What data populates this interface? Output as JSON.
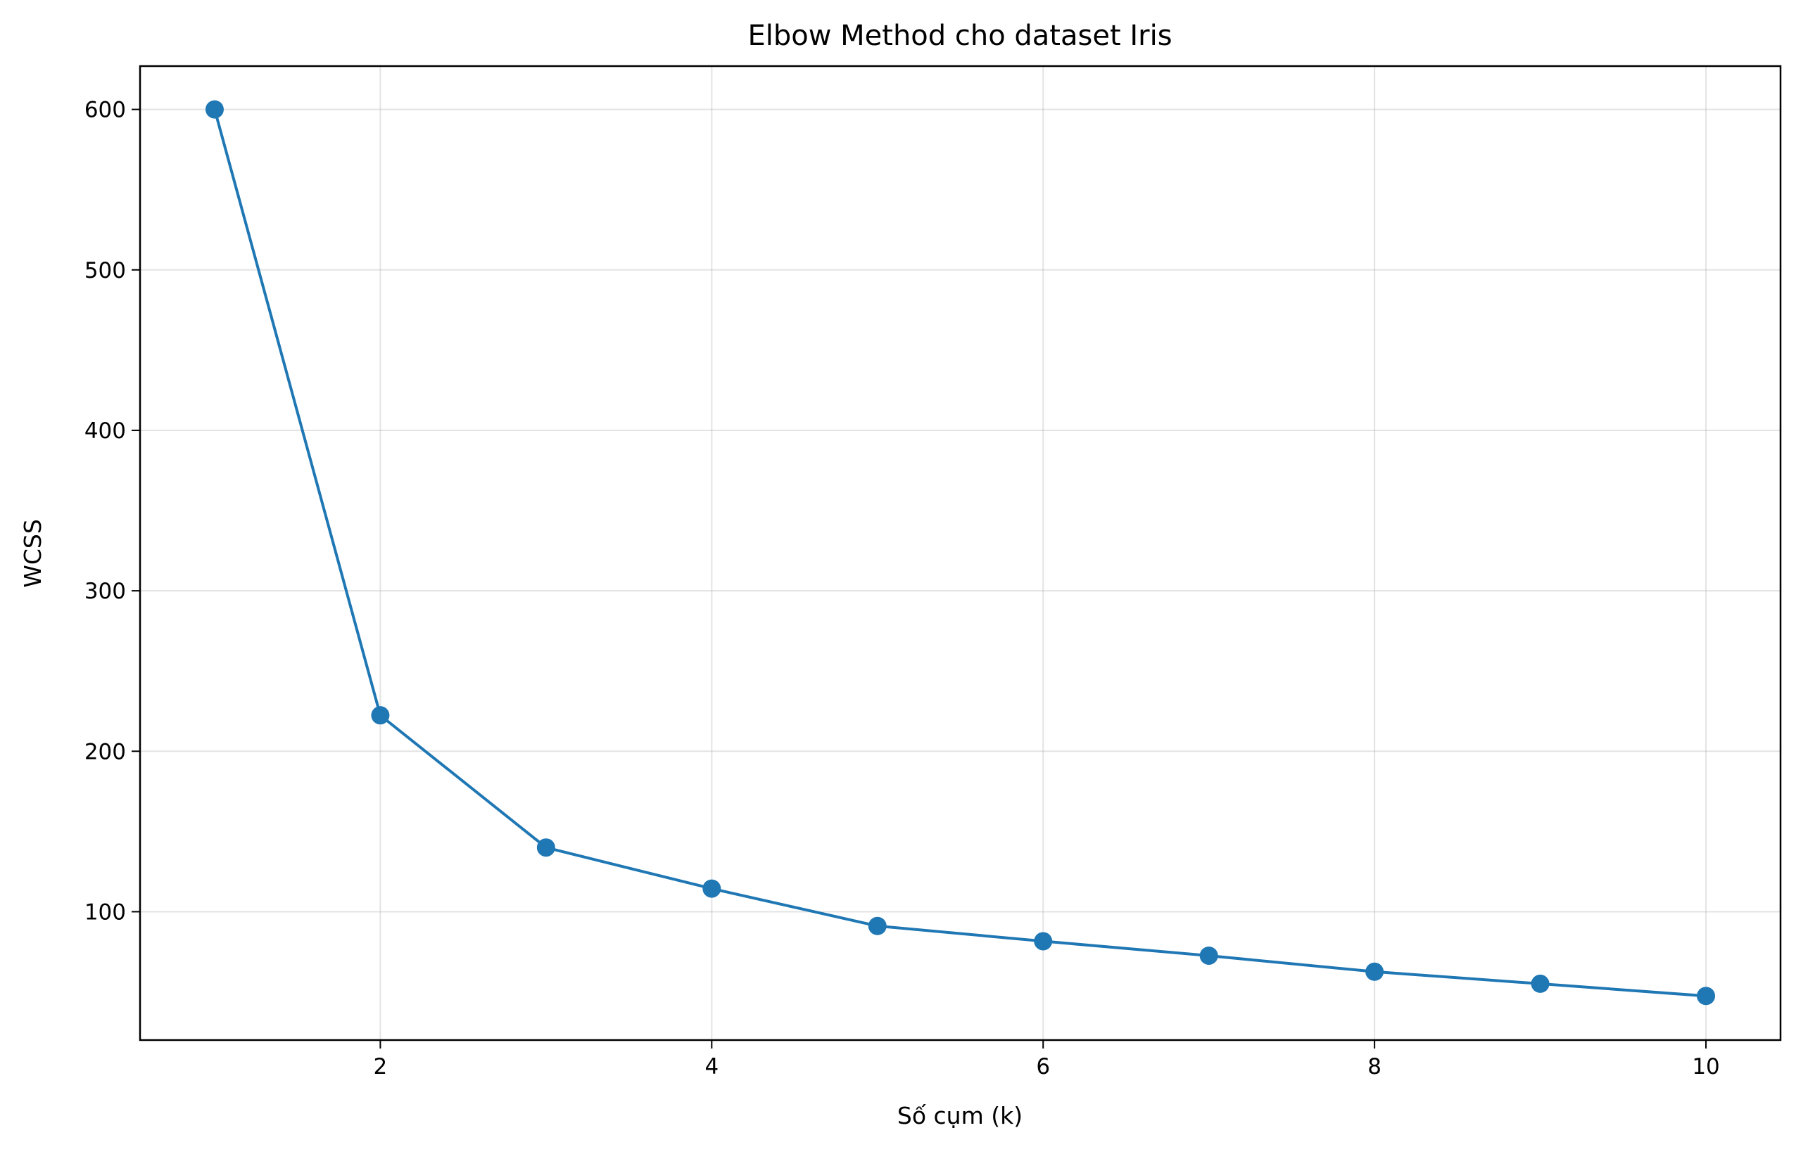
{
  "chart_data": {
    "type": "line",
    "title": "Elbow Method cho dataset Iris",
    "xlabel": "Số cụm (k)",
    "ylabel": "WCSS",
    "x": [
      1,
      2,
      3,
      4,
      5,
      6,
      7,
      8,
      9,
      10
    ],
    "series": [
      {
        "values": [
          600.0,
          222.4,
          140.0,
          114.4,
          91.1,
          81.6,
          72.6,
          62.6,
          55.1,
          47.5
        ],
        "color": "#1f77b4",
        "marker": "circle"
      }
    ],
    "xlim": [
      0.55,
      10.45
    ],
    "ylim": [
      20,
      627
    ],
    "xticks": [
      2,
      4,
      6,
      8,
      10
    ],
    "yticks": [
      100,
      200,
      300,
      400,
      500,
      600
    ],
    "grid": true,
    "legend": "none"
  }
}
